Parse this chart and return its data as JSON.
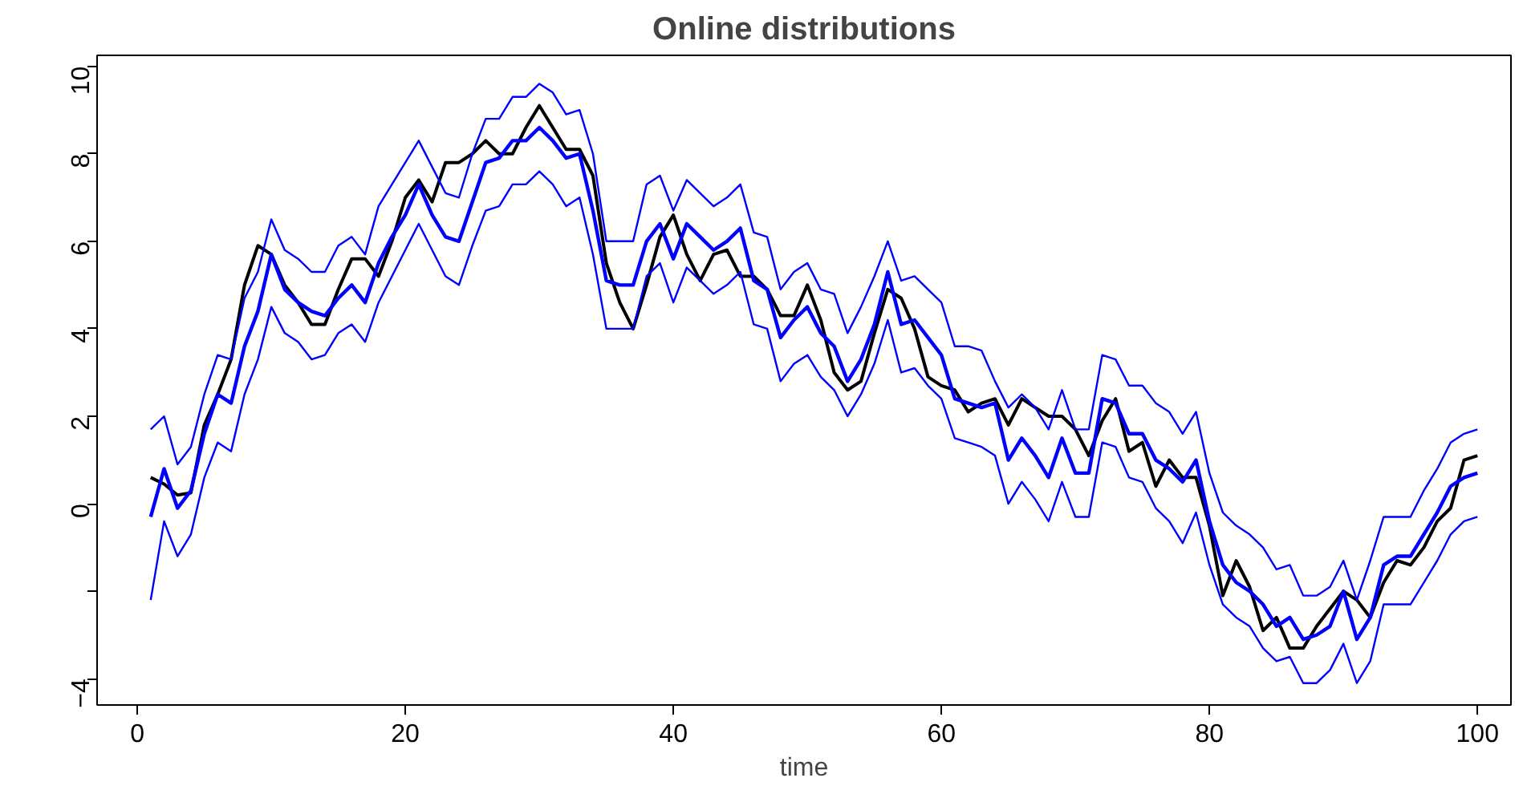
{
  "chart_data": {
    "type": "line",
    "title": "Online distributions",
    "xlabel": "time",
    "x": [
      1,
      2,
      3,
      4,
      5,
      6,
      7,
      8,
      9,
      10,
      11,
      12,
      13,
      14,
      15,
      16,
      17,
      18,
      19,
      20,
      21,
      22,
      23,
      24,
      25,
      26,
      27,
      28,
      29,
      30,
      31,
      32,
      33,
      34,
      35,
      36,
      37,
      38,
      39,
      40,
      41,
      42,
      43,
      44,
      45,
      46,
      47,
      48,
      49,
      50,
      51,
      52,
      53,
      54,
      55,
      56,
      57,
      58,
      59,
      60,
      61,
      62,
      63,
      64,
      65,
      66,
      67,
      68,
      69,
      70,
      71,
      72,
      73,
      74,
      75,
      76,
      77,
      78,
      79,
      80,
      81,
      82,
      83,
      84,
      85,
      86,
      87,
      88,
      89,
      90,
      91,
      92,
      93,
      94,
      95,
      96,
      97,
      98,
      99,
      100
    ],
    "series": [
      {
        "color": "#000000",
        "values": [
          0.6,
          0.45,
          0.2,
          0.25,
          1.8,
          2.5,
          3.3,
          5.0,
          5.9,
          5.7,
          5.0,
          4.6,
          4.1,
          4.1,
          4.9,
          5.6,
          5.6,
          5.2,
          6.0,
          7.0,
          7.4,
          6.9,
          7.8,
          7.8,
          8.0,
          8.3,
          8.0,
          8.0,
          8.6,
          9.1,
          8.6,
          8.1,
          8.1,
          7.5,
          5.5,
          4.6,
          4.0,
          5.0,
          6.1,
          6.6,
          5.7,
          5.1,
          5.7,
          5.8,
          5.2,
          5.2,
          4.9,
          4.3,
          4.3,
          5.0,
          4.2,
          3.0,
          2.6,
          2.8,
          3.9,
          4.9,
          4.7,
          4.0,
          2.9,
          2.7,
          2.6,
          2.1,
          2.3,
          2.4,
          1.8,
          2.4,
          2.2,
          2.0,
          2.0,
          1.7,
          1.1,
          1.9,
          2.4,
          1.2,
          1.4,
          0.4,
          1.0,
          0.6,
          0.6,
          -0.5,
          -2.1,
          -1.3,
          -1.9,
          -2.9,
          -2.6,
          -3.3,
          -3.3,
          -2.8,
          -2.4,
          -2.0,
          -2.2,
          -2.6,
          -1.8,
          -1.3,
          -1.4,
          -1.0,
          -0.4,
          -0.1,
          1.0,
          1.1
        ]
      },
      {
        "color": "#0000ff",
        "values": [
          -0.3,
          0.8,
          -0.1,
          0.3,
          1.6,
          2.5,
          2.3,
          3.6,
          4.4,
          5.7,
          4.9,
          4.6,
          4.4,
          4.3,
          4.7,
          5.0,
          4.6,
          5.5,
          6.1,
          6.6,
          7.3,
          6.6,
          6.1,
          6.0,
          6.9,
          7.8,
          7.9,
          8.3,
          8.3,
          8.6,
          8.3,
          7.9,
          8.0,
          6.7,
          5.1,
          5.0,
          5.0,
          6.0,
          6.4,
          5.6,
          6.4,
          6.1,
          5.8,
          6.0,
          6.3,
          5.1,
          4.9,
          3.8,
          4.2,
          4.5,
          3.9,
          3.6,
          2.8,
          3.3,
          4.1,
          5.3,
          4.1,
          4.2,
          3.8,
          3.4,
          2.4,
          2.3,
          2.2,
          2.3,
          1.0,
          1.5,
          1.1,
          0.6,
          1.5,
          0.7,
          0.7,
          2.4,
          2.3,
          1.6,
          1.6,
          1.0,
          0.8,
          0.5,
          1.0,
          -0.4,
          -1.4,
          -1.8,
          -2.0,
          -2.3,
          -2.8,
          -2.6,
          -3.1,
          -3.0,
          -2.8,
          -2.0,
          -3.1,
          -2.6,
          -1.4,
          -1.2,
          -1.2,
          -0.7,
          -0.2,
          0.4,
          0.6,
          0.7
        ]
      },
      {
        "color": "#0000ff",
        "values": [
          1.7,
          2.0,
          0.9,
          1.3,
          2.5,
          3.4,
          3.3,
          4.7,
          5.3,
          6.5,
          5.8,
          5.6,
          5.3,
          5.3,
          5.9,
          6.1,
          5.7,
          6.8,
          7.3,
          7.8,
          8.3,
          7.7,
          7.1,
          7.0,
          8.0,
          8.8,
          8.8,
          9.3,
          9.3,
          9.6,
          9.4,
          8.9,
          9.0,
          8.0,
          6.0,
          6.0,
          6.0,
          7.3,
          7.5,
          6.7,
          7.4,
          7.1,
          6.8,
          7.0,
          7.3,
          6.2,
          6.1,
          4.9,
          5.3,
          5.5,
          4.9,
          4.8,
          3.9,
          4.5,
          5.2,
          6.0,
          5.1,
          5.2,
          4.9,
          4.6,
          3.6,
          3.6,
          3.5,
          2.8,
          2.2,
          2.5,
          2.2,
          1.7,
          2.6,
          1.7,
          1.7,
          3.4,
          3.3,
          2.7,
          2.7,
          2.3,
          2.1,
          1.6,
          2.1,
          0.7,
          -0.2,
          -0.5,
          -0.7,
          -1.0,
          -1.5,
          -1.4,
          -2.1,
          -2.1,
          -1.9,
          -1.3,
          -2.2,
          -1.3,
          -0.3,
          -0.3,
          -0.3,
          0.3,
          0.8,
          1.4,
          1.6,
          1.7
        ]
      },
      {
        "color": "#0000ff",
        "values": [
          -2.2,
          -0.4,
          -1.2,
          -0.7,
          0.6,
          1.4,
          1.2,
          2.5,
          3.3,
          4.5,
          3.9,
          3.7,
          3.3,
          3.4,
          3.9,
          4.1,
          3.7,
          4.6,
          5.2,
          5.8,
          6.4,
          5.8,
          5.2,
          5.0,
          5.9,
          6.7,
          6.8,
          7.3,
          7.3,
          7.6,
          7.3,
          6.8,
          7.0,
          5.7,
          4.0,
          4.0,
          4.0,
          5.2,
          5.5,
          4.6,
          5.4,
          5.1,
          4.8,
          5.0,
          5.3,
          4.1,
          4.0,
          2.8,
          3.2,
          3.4,
          2.9,
          2.6,
          2.0,
          2.5,
          3.2,
          4.2,
          3.0,
          3.1,
          2.7,
          2.4,
          1.5,
          1.4,
          1.3,
          1.1,
          0.0,
          0.5,
          0.1,
          -0.4,
          0.5,
          -0.3,
          -0.3,
          1.4,
          1.3,
          0.6,
          0.5,
          -0.1,
          -0.4,
          -0.9,
          -0.2,
          -1.4,
          -2.3,
          -2.6,
          -2.8,
          -3.3,
          -3.6,
          -3.5,
          -4.1,
          -4.1,
          -3.8,
          -3.2,
          -4.1,
          -3.6,
          -2.3,
          -2.3,
          -2.3,
          -1.8,
          -1.3,
          -0.7,
          -0.4,
          -0.3
        ]
      }
    ],
    "xlim": [
      -3,
      102.5
    ],
    "ylim": [
      -4.6,
      10.25
    ],
    "xticks": [
      0,
      20,
      40,
      60,
      80,
      100
    ],
    "yticks": [
      {
        "value": -4,
        "label": "−4"
      },
      {
        "value": -2,
        "label": null
      },
      0,
      2,
      4,
      6,
      8,
      10
    ]
  }
}
